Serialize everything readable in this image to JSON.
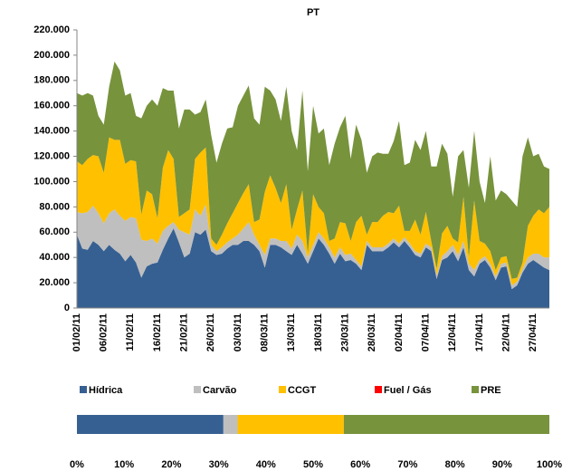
{
  "chart_data": [
    {
      "type": "stacked_area",
      "title": "PT",
      "categories": [
        "01/02/11",
        null,
        null,
        null,
        null,
        "06/02/11",
        null,
        null,
        null,
        null,
        "11/02/11",
        null,
        null,
        null,
        null,
        "16/02/11",
        null,
        null,
        null,
        null,
        "21/02/11",
        null,
        null,
        null,
        null,
        "26/02/11",
        null,
        null,
        null,
        null,
        "03/03/11",
        null,
        null,
        null,
        null,
        "08/03/11",
        null,
        null,
        null,
        null,
        "13/03/11",
        null,
        null,
        null,
        null,
        "18/03/11",
        null,
        null,
        null,
        null,
        "23/03/11",
        null,
        null,
        null,
        null,
        "28/03/11",
        null,
        null,
        null,
        null,
        "02/04/11",
        null,
        null,
        null,
        null,
        "07/04/11",
        null,
        null,
        null,
        null,
        "12/04/11",
        null,
        null,
        null,
        null,
        "17/04/11",
        null,
        null,
        null,
        null,
        "22/04/11",
        null,
        null,
        null,
        null,
        "27/04/11",
        null,
        null,
        null
      ],
      "series": [
        {
          "name": "Hídrica",
          "color": "#376092",
          "values": [
            58000,
            47000,
            46000,
            53000,
            50000,
            45000,
            50000,
            46000,
            43000,
            37000,
            42000,
            36000,
            24000,
            33000,
            35000,
            36000,
            46000,
            55000,
            63000,
            52000,
            40000,
            43000,
            60000,
            58000,
            62000,
            45000,
            42000,
            43000,
            47000,
            50000,
            50000,
            53000,
            53000,
            50000,
            45000,
            32000,
            50000,
            50000,
            48000,
            45000,
            42000,
            50000,
            43000,
            35000,
            45000,
            55000,
            50000,
            43000,
            35000,
            43000,
            37000,
            38000,
            35000,
            30000,
            50000,
            45000,
            45000,
            45000,
            48000,
            52000,
            48000,
            53000,
            48000,
            42000,
            40000,
            48000,
            45000,
            23000,
            38000,
            40000,
            45000,
            37000,
            48000,
            30000,
            25000,
            35000,
            38000,
            32000,
            22000,
            32000,
            33000,
            15000,
            18000,
            28000,
            35000,
            38000,
            35000,
            32000,
            30000
          ]
        },
        {
          "name": "Carvão",
          "color": "#bfbfbf",
          "values": [
            18000,
            28000,
            30000,
            28000,
            25000,
            22000,
            25000,
            32000,
            30000,
            32000,
            30000,
            35000,
            30000,
            20000,
            20000,
            15000,
            15000,
            10000,
            5000,
            10000,
            20000,
            15000,
            18000,
            15000,
            20000,
            5000,
            3000,
            5000,
            5000,
            5000,
            8000,
            10000,
            15000,
            8000,
            5000,
            10000,
            5000,
            5000,
            5000,
            8000,
            5000,
            8000,
            10000,
            5000,
            5000,
            5000,
            5000,
            5000,
            5000,
            5000,
            5000,
            5000,
            3000,
            3000,
            3000,
            3000,
            3000,
            3000,
            3000,
            3000,
            3000,
            3000,
            3000,
            3000,
            3000,
            3000,
            3000,
            3000,
            3000,
            5000,
            5000,
            5000,
            5000,
            5000,
            5000,
            3000,
            3000,
            3000,
            3000,
            3000,
            3000,
            3000,
            3000,
            3000,
            5000,
            5000,
            8000,
            8000,
            10000
          ]
        },
        {
          "name": "CCGT",
          "color": "#ffc000",
          "values": [
            40000,
            38000,
            42000,
            40000,
            45000,
            40000,
            60000,
            55000,
            60000,
            45000,
            45000,
            45000,
            20000,
            40000,
            35000,
            20000,
            50000,
            60000,
            50000,
            10000,
            15000,
            20000,
            40000,
            50000,
            45000,
            5000,
            5000,
            10000,
            15000,
            20000,
            25000,
            28000,
            30000,
            10000,
            20000,
            50000,
            50000,
            40000,
            30000,
            45000,
            15000,
            20000,
            40000,
            3000,
            40000,
            20000,
            20000,
            5000,
            15000,
            20000,
            25000,
            10000,
            30000,
            40000,
            5000,
            20000,
            20000,
            25000,
            25000,
            20000,
            30000,
            5000,
            10000,
            25000,
            15000,
            25000,
            5000,
            5000,
            18000,
            20000,
            5000,
            10000,
            35000,
            5000,
            55000,
            15000,
            10000,
            10000,
            5000,
            5000,
            5000,
            5000,
            3000,
            5000,
            25000,
            30000,
            35000,
            35000,
            40000
          ]
        },
        {
          "name": "Fuel / Gás",
          "color": "#ff0000",
          "values": [
            0,
            0,
            0,
            0,
            0,
            0,
            0,
            0,
            0,
            0,
            0,
            0,
            0,
            0,
            0,
            0,
            0,
            0,
            0,
            0,
            0,
            0,
            0,
            0,
            0,
            0,
            0,
            0,
            0,
            0,
            0,
            0,
            0,
            0,
            0,
            0,
            0,
            0,
            0,
            0,
            0,
            0,
            0,
            0,
            0,
            0,
            0,
            0,
            0,
            0,
            0,
            0,
            0,
            0,
            0,
            0,
            0,
            0,
            0,
            0,
            0,
            0,
            0,
            0,
            0,
            0,
            0,
            0,
            0,
            0,
            0,
            0,
            0,
            0,
            0,
            0,
            0,
            0,
            0,
            0,
            0,
            0,
            0,
            0,
            0,
            0,
            0,
            0,
            0
          ]
        },
        {
          "name": "PRE",
          "color": "#77933c",
          "values": [
            54000,
            55000,
            52000,
            47000,
            32000,
            38000,
            40000,
            62000,
            55000,
            54000,
            53000,
            36000,
            76000,
            67000,
            75000,
            89000,
            63000,
            47000,
            54000,
            70000,
            82000,
            79000,
            35000,
            32000,
            38000,
            82000,
            65000,
            72000,
            75000,
            68000,
            77000,
            77000,
            78000,
            82000,
            75000,
            83000,
            67000,
            70000,
            65000,
            77000,
            78000,
            47000,
            79000,
            65000,
            70000,
            58000,
            67000,
            60000,
            75000,
            75000,
            85000,
            65000,
            77000,
            60000,
            49000,
            52000,
            55000,
            49000,
            46000,
            57000,
            67000,
            52000,
            54000,
            63000,
            67000,
            64000,
            59000,
            81000,
            71000,
            57000,
            33000,
            68000,
            37000,
            55000,
            55000,
            47000,
            32000,
            75000,
            55000,
            53000,
            49000,
            62000,
            56000,
            84000,
            70000,
            47000,
            44000,
            37000,
            30000
          ]
        }
      ],
      "ylim": [
        0,
        220000
      ],
      "yticks": [
        {
          "value": 0,
          "label": "0"
        },
        {
          "value": 20000,
          "label": "20.000"
        },
        {
          "value": 40000,
          "label": "40.000"
        },
        {
          "value": 60000,
          "label": "60.000"
        },
        {
          "value": 80000,
          "label": "80.000"
        },
        {
          "value": 100000,
          "label": "100.000"
        },
        {
          "value": 120000,
          "label": "120.000"
        },
        {
          "value": 140000,
          "label": "140.000"
        },
        {
          "value": 160000,
          "label": "160.000"
        },
        {
          "value": 180000,
          "label": "180.000"
        },
        {
          "value": 200000,
          "label": "200.000"
        },
        {
          "value": 220000,
          "label": "220.000"
        }
      ],
      "grid": false,
      "legend": "bottom"
    },
    {
      "type": "stacked_bar",
      "series": [
        {
          "color": "#376092",
          "values": [
            31
          ]
        },
        {
          "color": "#bfbfbf",
          "values": [
            3
          ]
        },
        {
          "color": "#ffc000",
          "values": [
            22.5
          ]
        },
        {
          "color": "#ff0000",
          "values": [
            0
          ]
        },
        {
          "color": "#77933c",
          "values": [
            43.5
          ]
        }
      ],
      "xlim": [
        0,
        100
      ],
      "xticks": [
        {
          "value": 0,
          "label": "0%"
        },
        {
          "value": 10,
          "label": "10%"
        },
        {
          "value": 20,
          "label": "20%"
        },
        {
          "value": 30,
          "label": "30%"
        },
        {
          "value": 40,
          "label": "40%"
        },
        {
          "value": 50,
          "label": "50%"
        },
        {
          "value": 60,
          "label": "60%"
        },
        {
          "value": 70,
          "label": "70%"
        },
        {
          "value": 80,
          "label": "80%"
        },
        {
          "value": 90,
          "label": "90%"
        },
        {
          "value": 100,
          "label": "100%"
        }
      ]
    }
  ]
}
